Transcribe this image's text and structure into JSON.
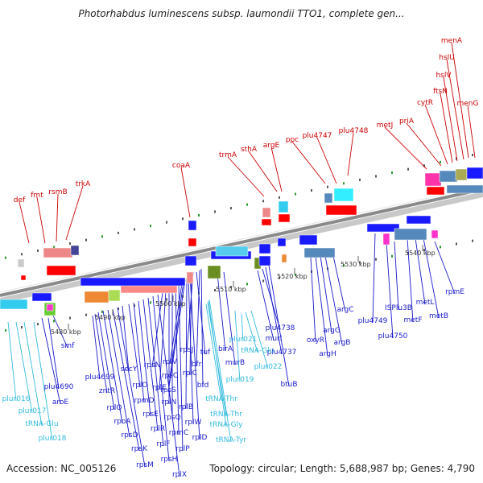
{
  "title": "Photorhabdus luminescens subsp. laumondii TTO1, complete gen...",
  "accession_text": "Accession: NC_005126",
  "summary_text": "Topology: circular; Length: 5,688,987 bp; Genes: 4,790",
  "colors": {
    "top_label": "#cc0000",
    "bottom_label": "#1a1acc",
    "rna_label": "#33bbdd",
    "backbone": "#8a8a8a"
  },
  "ticks": [
    "5480 kbp",
    "5490 kbp",
    "5500 kbp",
    "5510 kbp",
    "5520 kbp",
    "5530 kbp",
    "5540 kbp"
  ],
  "top_labels": [
    "def",
    "fmt",
    "rsmB",
    "trkA",
    "coaA",
    "trmA",
    "sthA",
    "argE",
    "ppc",
    "plu4747",
    "plu4748",
    "metJ",
    "priA",
    "cytR",
    "ftsN",
    "hslV",
    "hslU",
    "menA",
    "menG"
  ],
  "bottom_labels": [
    "smf",
    "plu4690",
    "aroE",
    "plu4699",
    "zntR",
    "rplQ",
    "rpoA",
    "rpsD",
    "rpsK",
    "rpsM",
    "secY",
    "rplO",
    "rpmD",
    "rpsE",
    "rplR",
    "rplF",
    "rpsH",
    "rplX",
    "rpsN",
    "rplE",
    "rplN",
    "rpsQ",
    "rpmC",
    "rplP",
    "rplV",
    "rpsC",
    "rpsS",
    "rplB",
    "rplW",
    "rplD",
    "rplC",
    "rpsJ",
    "tuf",
    "bfr",
    "bfd",
    "birA",
    "murB",
    "murI",
    "plu4738",
    "plu4737",
    "btuB",
    "oxyR",
    "argH",
    "argG",
    "argB",
    "argC",
    "plu4749",
    "plu4750",
    "ISPlu3B",
    "metF",
    "metL",
    "metB",
    "rpmE"
  ],
  "rna_labels": [
    "plur016",
    "plur017",
    "tRNA-Glu",
    "plur018",
    "tRNA-Thr",
    "tRNA-Thr",
    "tRNA-Gly",
    "tRNA-Tyr",
    "plur021",
    "tRNA-Glu",
    "plur022",
    "plur019"
  ]
}
